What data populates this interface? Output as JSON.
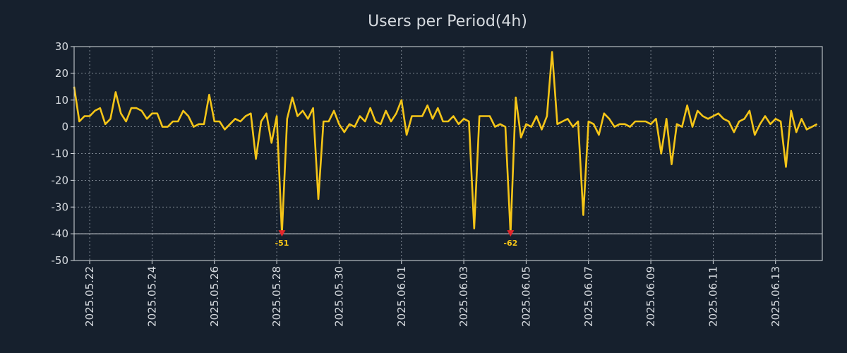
{
  "chart_data": {
    "type": "line",
    "title": "Users per Period(4h)",
    "xlabel": "",
    "ylabel": "",
    "ylim": [
      -50,
      30
    ],
    "yticks": [
      30,
      20,
      10,
      0,
      -10,
      -20,
      -30,
      -40,
      -50
    ],
    "ytick_labels": [
      "30",
      "20",
      "10",
      "0",
      "-10",
      "-20",
      "-30",
      "-40",
      "-50"
    ],
    "display_floor": -40,
    "x_start": "2025-05-21T12:00",
    "x_end": "2025-06-14T12:00",
    "x_tick_dates": [
      "2025-05-22",
      "2025-05-24",
      "2025-05-26",
      "2025-05-28",
      "2025-05-30",
      "2025-06-01",
      "2025-06-03",
      "2025-06-05",
      "2025-06-07",
      "2025-06-09",
      "2025-06-11",
      "2025-06-13"
    ],
    "x_tick_labels": [
      "2025.05.22",
      "2025.05.24",
      "2025.05.26",
      "2025.05.28",
      "2025.05.30",
      "2025.06.01",
      "2025.06.03",
      "2025.06.05",
      "2025.06.07",
      "2025.06.09",
      "2025.06.11",
      "2025.06.13"
    ],
    "period_hours": 4,
    "series": [
      {
        "name": "Users",
        "color": "#f5c518",
        "values": [
          15,
          2,
          4,
          4,
          6,
          7,
          1,
          3,
          13,
          5,
          2,
          7,
          7,
          6,
          3,
          5,
          5,
          0,
          0,
          2,
          2,
          6,
          4,
          0,
          1,
          1,
          12,
          2,
          2,
          -1,
          1,
          3,
          2,
          4,
          5,
          -12,
          2,
          5,
          -6,
          4,
          -51,
          3,
          11,
          4,
          6,
          3,
          7,
          -27,
          2,
          2,
          6,
          1,
          -2,
          1,
          0,
          4,
          2,
          7,
          2,
          1,
          6,
          2,
          5,
          10,
          -3,
          4,
          4,
          4,
          8,
          3,
          7,
          2,
          2,
          4,
          1,
          3,
          2,
          -38,
          4,
          4,
          4,
          0,
          1,
          0,
          -62,
          11,
          -4,
          1,
          0,
          4,
          -1,
          4,
          28,
          1,
          2,
          3,
          0,
          2,
          -33,
          2,
          1,
          -3,
          5,
          3,
          0,
          1,
          1,
          0,
          2,
          2,
          2,
          1,
          3,
          -10,
          3,
          -14,
          1,
          0,
          8,
          0,
          6,
          4,
          3,
          4,
          5,
          3,
          2,
          -2,
          2,
          3,
          6,
          -3,
          1,
          4,
          1,
          3,
          2,
          -15,
          6,
          -2,
          3,
          -1,
          0,
          1
        ]
      }
    ],
    "clipped_points": [
      {
        "index": 40,
        "value": -51,
        "label": "-51",
        "marker_color": "#e3262b",
        "label_color": "#f5c518"
      },
      {
        "index": 84,
        "value": -62,
        "label": "-62",
        "marker_color": "#e3262b",
        "label_color": "#f5c518"
      }
    ]
  }
}
